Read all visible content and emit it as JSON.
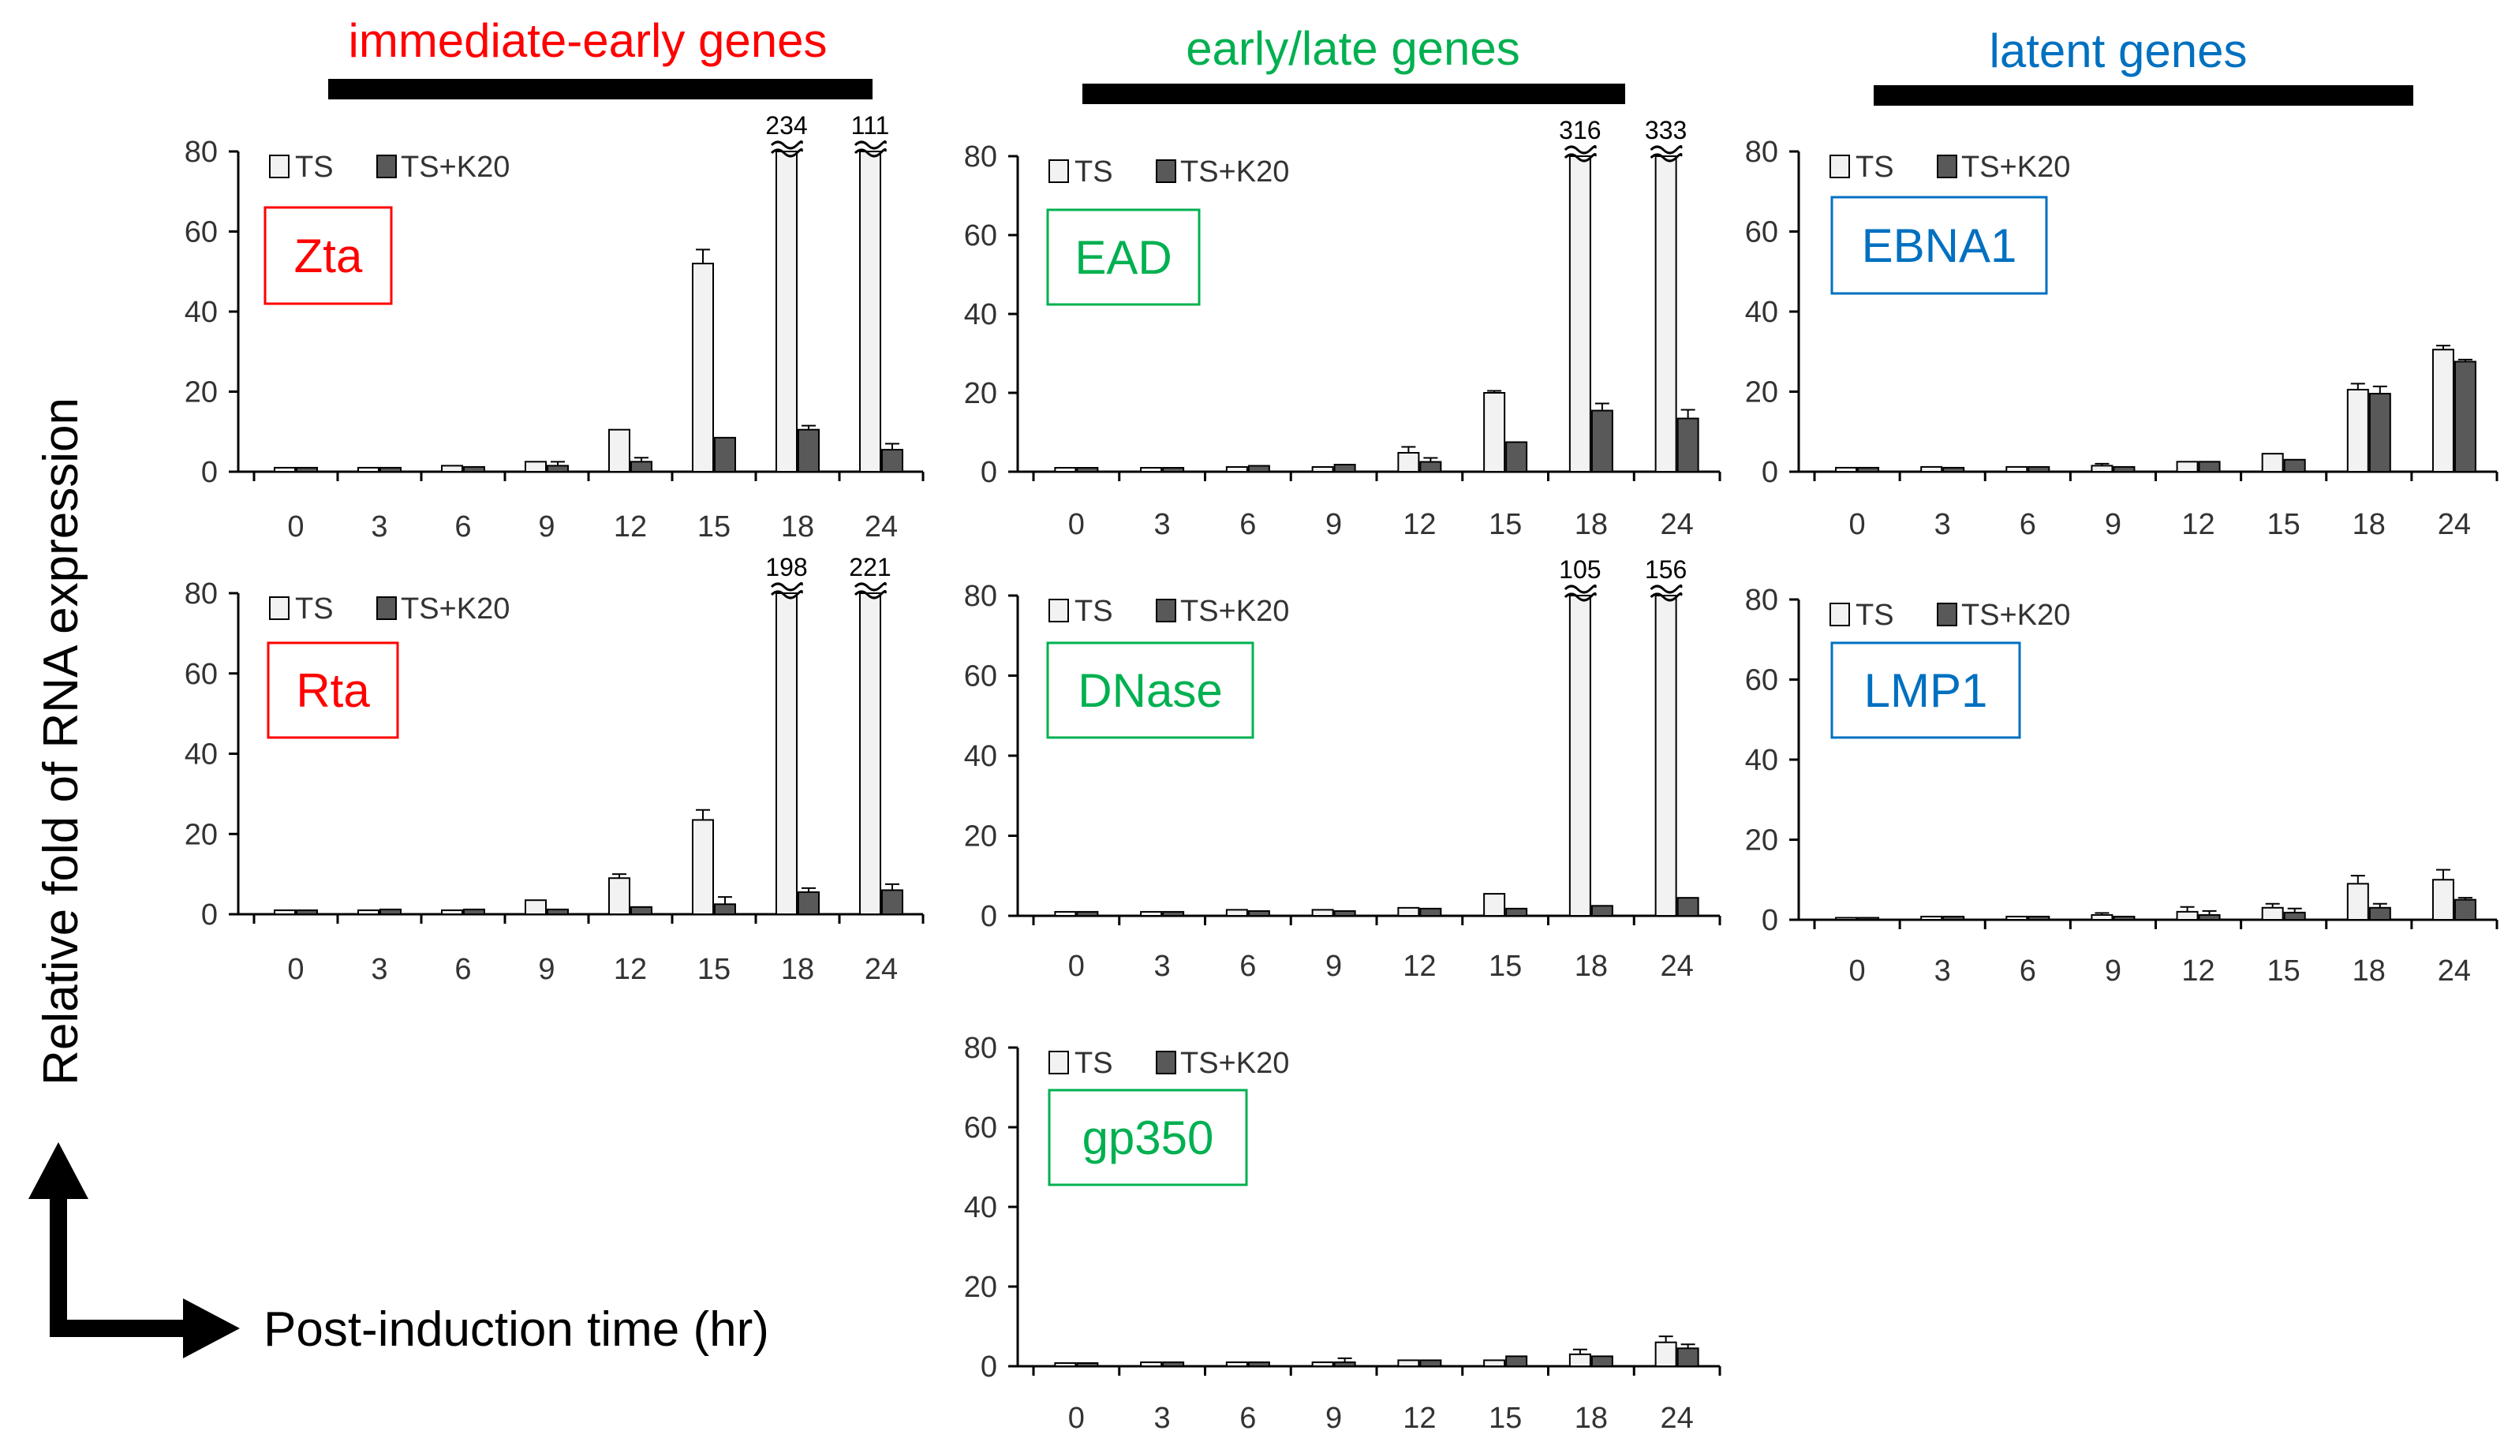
{
  "figure": {
    "y_axis_label": "Relative fold of RNA expression",
    "x_axis_label": "Post-induction time (hr)"
  },
  "groups": [
    {
      "title": "immediate-early genes",
      "color": "#ff0000"
    },
    {
      "title": "early/late  genes",
      "color": "#00b050"
    },
    {
      "title": "latent genes",
      "color": "#0070c0"
    }
  ],
  "legend": {
    "series1": "TS",
    "series2": "TS+K20"
  },
  "colors": {
    "ts_fill": "#f2f2f2",
    "k20_fill": "#595959",
    "ink": "#000000"
  },
  "chart_data": [
    {
      "type": "bar",
      "title": "Zta",
      "group": "immediate-early genes",
      "categories": [
        "0",
        "3",
        "6",
        "9",
        "12",
        "15",
        "18",
        "24"
      ],
      "y_ticks": [
        "0",
        "20",
        "40",
        "60",
        "80"
      ],
      "ylim": [
        0,
        80
      ],
      "series": [
        {
          "name": "TS",
          "values": [
            1,
            1,
            1.5,
            2.5,
            10.5,
            52,
            234,
            111
          ],
          "errors": [
            0,
            0,
            0,
            0,
            0,
            3.5,
            0,
            0
          ]
        },
        {
          "name": "TS+K20",
          "values": [
            1,
            1,
            1.2,
            1.5,
            2.5,
            8.5,
            10.5,
            5.5
          ],
          "errors": [
            0,
            0,
            0,
            1,
            1,
            0,
            1,
            1.5
          ]
        }
      ],
      "breaks": [
        {
          "category": "18",
          "label": "234"
        },
        {
          "category": "24",
          "label": "111"
        }
      ]
    },
    {
      "type": "bar",
      "title": "EAD",
      "group": "early/late  genes",
      "categories": [
        "0",
        "3",
        "6",
        "9",
        "12",
        "15",
        "18",
        "24"
      ],
      "y_ticks": [
        "0",
        "20",
        "40",
        "60",
        "80"
      ],
      "ylim": [
        0,
        80
      ],
      "series": [
        {
          "name": "TS",
          "values": [
            1,
            1,
            1.2,
            1.2,
            4.8,
            20,
            316,
            333
          ],
          "errors": [
            0,
            0,
            0,
            0,
            1.5,
            0.5,
            0,
            0
          ]
        },
        {
          "name": "TS+K20",
          "values": [
            1,
            1,
            1.5,
            1.8,
            2.5,
            7.5,
            15.5,
            13.5
          ],
          "errors": [
            0,
            0,
            0,
            0,
            1,
            0,
            1.8,
            2.2
          ]
        }
      ],
      "breaks": [
        {
          "category": "18",
          "label": "316"
        },
        {
          "category": "24",
          "label": "333"
        }
      ]
    },
    {
      "type": "bar",
      "title": "EBNA1",
      "group": "latent genes",
      "categories": [
        "0",
        "3",
        "6",
        "9",
        "12",
        "15",
        "18",
        "24"
      ],
      "y_ticks": [
        "0",
        "20",
        "40",
        "60",
        "80"
      ],
      "ylim": [
        0,
        80
      ],
      "series": [
        {
          "name": "TS",
          "values": [
            1,
            1.2,
            1.2,
            1.5,
            2.5,
            4.5,
            20.5,
            30.5
          ],
          "errors": [
            0,
            0,
            0,
            0.5,
            0,
            0,
            1.5,
            1
          ]
        },
        {
          "name": "TS+K20",
          "values": [
            1,
            1,
            1.2,
            1.2,
            2.5,
            3,
            19.5,
            27.5
          ],
          "errors": [
            0,
            0,
            0,
            0,
            0,
            0,
            1.8,
            0.5
          ]
        }
      ],
      "breaks": []
    },
    {
      "type": "bar",
      "title": "Rta",
      "group": "immediate-early genes",
      "categories": [
        "0",
        "3",
        "6",
        "9",
        "12",
        "15",
        "18",
        "24"
      ],
      "y_ticks": [
        "0",
        "20",
        "40",
        "60",
        "80"
      ],
      "ylim": [
        0,
        80
      ],
      "series": [
        {
          "name": "TS",
          "values": [
            1,
            1,
            1,
            3.5,
            9,
            23.5,
            198,
            221
          ],
          "errors": [
            0,
            0,
            0,
            0,
            1,
            2.5,
            0,
            0
          ]
        },
        {
          "name": "TS+K20",
          "values": [
            1,
            1.2,
            1.2,
            1.2,
            1.8,
            2.5,
            5.5,
            6
          ],
          "errors": [
            0,
            0,
            0,
            0,
            0,
            1.8,
            1,
            1.5
          ]
        }
      ],
      "breaks": [
        {
          "category": "18",
          "label": "198"
        },
        {
          "category": "24",
          "label": "221"
        }
      ]
    },
    {
      "type": "bar",
      "title": "DNase",
      "group": "early/late  genes",
      "categories": [
        "0",
        "3",
        "6",
        "9",
        "12",
        "15",
        "18",
        "24"
      ],
      "y_ticks": [
        "0",
        "20",
        "40",
        "60",
        "80"
      ],
      "ylim": [
        0,
        80
      ],
      "series": [
        {
          "name": "TS",
          "values": [
            1,
            1,
            1.5,
            1.5,
            2,
            5.5,
            105,
            156
          ],
          "errors": [
            0,
            0,
            0,
            0,
            0,
            0,
            0,
            0
          ]
        },
        {
          "name": "TS+K20",
          "values": [
            1,
            1,
            1.2,
            1.2,
            1.8,
            1.8,
            2.5,
            4.5
          ],
          "errors": [
            0,
            0,
            0,
            0,
            0,
            0,
            0,
            0
          ]
        }
      ],
      "breaks": [
        {
          "category": "18",
          "label": "105"
        },
        {
          "category": "24",
          "label": "156"
        }
      ]
    },
    {
      "type": "bar",
      "title": "LMP1",
      "group": "latent genes",
      "categories": [
        "0",
        "3",
        "6",
        "9",
        "12",
        "15",
        "18",
        "24"
      ],
      "y_ticks": [
        "0",
        "20",
        "40",
        "60",
        "80"
      ],
      "ylim": [
        0,
        80
      ],
      "series": [
        {
          "name": "TS",
          "values": [
            0.5,
            0.8,
            0.8,
            1.2,
            2,
            3,
            9,
            10
          ],
          "errors": [
            0,
            0,
            0,
            0.5,
            1.2,
            1,
            2,
            2.5
          ]
        },
        {
          "name": "TS+K20",
          "values": [
            0.5,
            0.8,
            0.8,
            0.8,
            1.2,
            1.8,
            3,
            5
          ],
          "errors": [
            0,
            0,
            0,
            0,
            1,
            1,
            1,
            0.5
          ]
        }
      ],
      "breaks": []
    },
    {
      "type": "bar",
      "title": "gp350",
      "group": "early/late  genes",
      "categories": [
        "0",
        "3",
        "6",
        "9",
        "12",
        "15",
        "18",
        "24"
      ],
      "y_ticks": [
        "0",
        "20",
        "40",
        "60",
        "80"
      ],
      "ylim": [
        0,
        80
      ],
      "series": [
        {
          "name": "TS",
          "values": [
            0.8,
            1,
            1,
            1,
            1.5,
            1.5,
            3,
            6
          ],
          "errors": [
            0,
            0,
            0,
            0,
            0,
            0,
            1.2,
            1.5
          ]
        },
        {
          "name": "TS+K20",
          "values": [
            0.8,
            1,
            1,
            1,
            1.5,
            2.5,
            2.5,
            4.5
          ],
          "errors": [
            0,
            0,
            0,
            1,
            0,
            0,
            0,
            1
          ]
        }
      ],
      "breaks": []
    }
  ]
}
